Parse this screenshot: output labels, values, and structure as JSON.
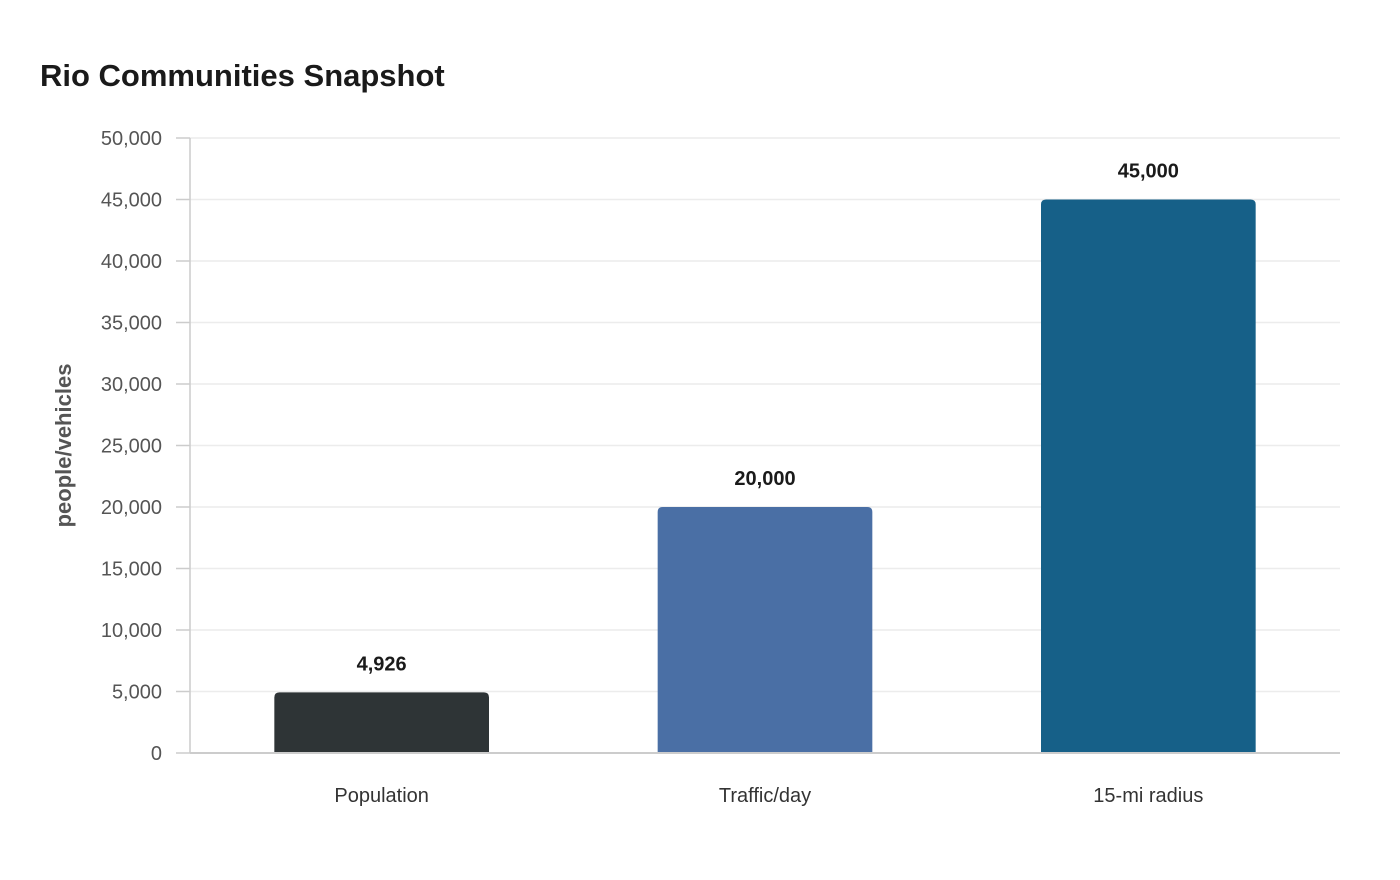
{
  "chart_data": {
    "type": "bar",
    "title": "Rio Communities Snapshot",
    "xlabel": "",
    "ylabel": "people/vehicles",
    "categories": [
      "Population",
      "Traffic/day",
      "15-mi radius"
    ],
    "values": [
      4926,
      20000,
      45000
    ],
    "value_labels": [
      "4,926",
      "20,000",
      "45,000"
    ],
    "colors": [
      "#2e3436",
      "#4a6fa5",
      "#166088"
    ],
    "ylim": [
      0,
      50000
    ],
    "yticks": [
      0,
      5000,
      10000,
      15000,
      20000,
      25000,
      30000,
      35000,
      40000,
      45000,
      50000
    ],
    "ytick_labels": [
      "0",
      "5,000",
      "10,000",
      "15,000",
      "20,000",
      "25,000",
      "30,000",
      "35,000",
      "40,000",
      "45,000",
      "50,000"
    ],
    "grid": true,
    "legend": "none"
  }
}
